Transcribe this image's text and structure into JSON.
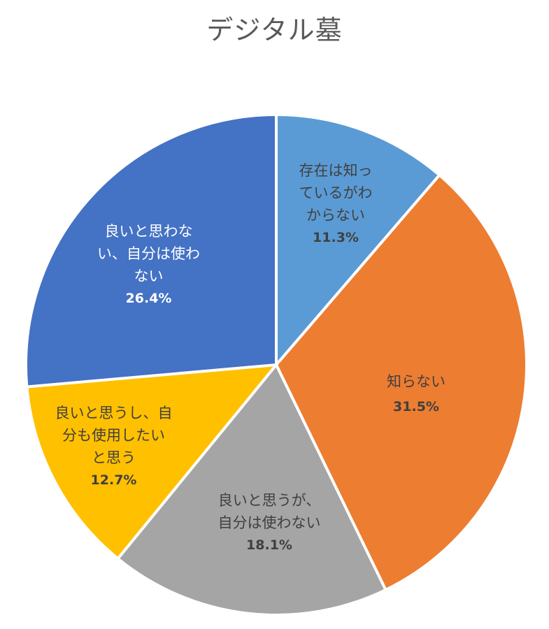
{
  "title": "デジタル墓",
  "chart_data": {
    "type": "pie",
    "title": "デジタル墓",
    "start_angle_deg": 0,
    "direction": "clockwise",
    "categories": [
      "存在は知っているがわからない",
      "知らない",
      "良いと思うが、自分は使わない",
      "良いと思うし、自分も使用したいと思う",
      "良いと思わない、自分は使わない"
    ],
    "values": [
      11.3,
      31.5,
      18.1,
      12.7,
      26.4
    ],
    "unit": "%",
    "colors": [
      "#5B9BD5",
      "#ED7D31",
      "#A5A5A5",
      "#FFC000",
      "#4472C4"
    ],
    "legend": "none (data labels inside slices)"
  },
  "labels": [
    {
      "lines": [
        "存在は知っ",
        "ているがわ",
        "からない"
      ],
      "pct": "11.3%"
    },
    {
      "lines": [
        "知らない"
      ],
      "pct": "31.5%"
    },
    {
      "lines": [
        "良いと思うが、",
        "自分は使わない"
      ],
      "pct": "18.1%"
    },
    {
      "lines": [
        "良いと思うし、自",
        "分も使用したい",
        "と思う"
      ],
      "pct": "12.7%"
    },
    {
      "lines": [
        "良いと思わな",
        "い、自分は使わ",
        "ない"
      ],
      "pct": "26.4%"
    }
  ]
}
